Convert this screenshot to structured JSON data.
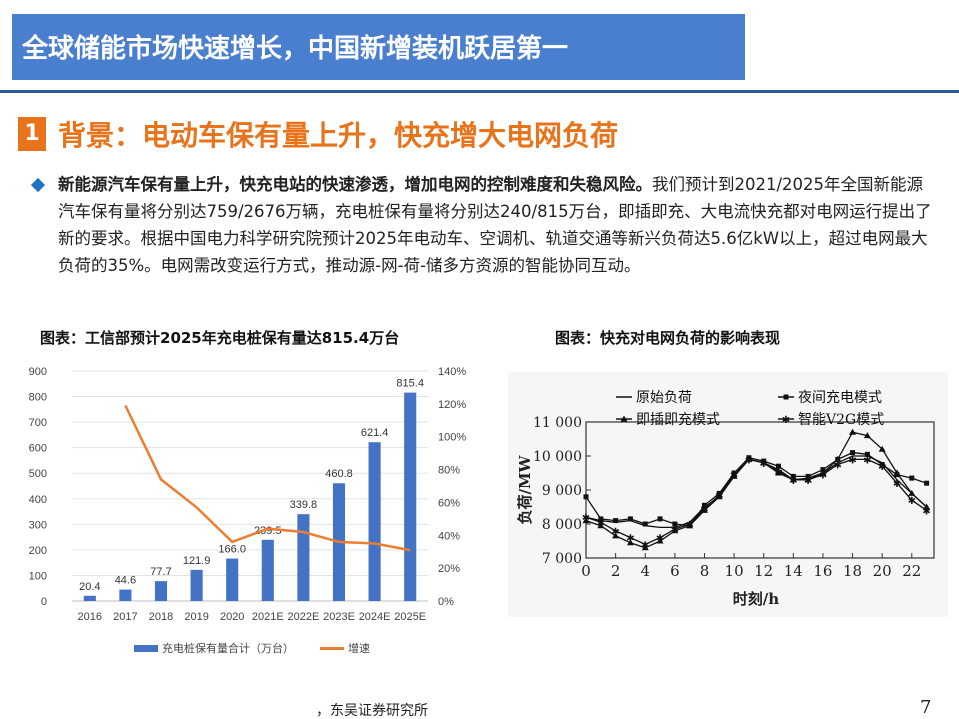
{
  "header": {
    "title": "全球储能市场快速增长，中国新增装机跃居第一"
  },
  "section": {
    "number": "1",
    "title": "背景：电动车保有量上升，快充增大电网负荷"
  },
  "paragraph": {
    "bold": "新能源汽车保有量上升，快充电站的快速渗透，增加电网的控制难度和失稳风险。",
    "rest": "我们预计到2021/2025年全国新能源汽车保有量将分别达759/2676万辆，充电桩保有量将分别达240/815万台，即插即充、大电流快充都对电网运行提出了新的要求。根据中国电力科学研究院预计2025年电动车、空调机、轨道交通等新兴负荷达5.6亿kW以上，超过电网最大负荷的35%。电网需改变运行方式，推动源-网-荷-储多方资源的智能协同互动。"
  },
  "chart_left_title": "图表：工信部预计2025年充电桩保有量达815.4万台",
  "chart_right_title": "图表：快充对电网负荷的影响表现",
  "footer": {
    "source": "，东吴证券研究所",
    "page": "7"
  },
  "colors": {
    "bar": "#4472c4",
    "growth_line": "#ed7d31",
    "title_bg": "#4a7fd0",
    "accent": "#e8731a"
  },
  "chart_data": [
    {
      "type": "bar",
      "categories": [
        "2016",
        "2017",
        "2018",
        "2019",
        "2020",
        "2021E",
        "2022E",
        "2023E",
        "2024E",
        "2025E"
      ],
      "series": [
        {
          "name": "充电桩保有量合计（万台）",
          "type": "bar",
          "axis": "left",
          "values": [
            20.4,
            44.6,
            77.7,
            121.9,
            166.0,
            239.5,
            339.8,
            460.8,
            621.4,
            815.4
          ],
          "labels": [
            "20.4",
            "44.6",
            "77.7",
            "121.9",
            "166.0",
            "239.5",
            "339.8",
            "460.8",
            "621.4",
            "815.4"
          ]
        },
        {
          "name": "增速",
          "type": "line",
          "axis": "right",
          "values": [
            null,
            1.19,
            0.74,
            0.57,
            0.36,
            0.44,
            0.42,
            0.36,
            0.35,
            0.31
          ]
        }
      ],
      "left_axis": {
        "ylim": [
          0,
          900
        ],
        "ticks": [
          "0",
          "100",
          "200",
          "300",
          "400",
          "500",
          "600",
          "700",
          "800",
          "900"
        ]
      },
      "right_axis": {
        "ylim": [
          0,
          1.4
        ],
        "ticks": [
          "0%",
          "20%",
          "40%",
          "60%",
          "80%",
          "100%",
          "120%",
          "140%"
        ]
      },
      "grid": true,
      "legend_position": "bottom"
    },
    {
      "type": "line",
      "xlabel": "时刻/h",
      "ylabel": "负荷/MW",
      "x": [
        0,
        1,
        2,
        3,
        4,
        5,
        6,
        7,
        8,
        9,
        10,
        11,
        12,
        13,
        14,
        15,
        16,
        17,
        18,
        19,
        20,
        21,
        22,
        23
      ],
      "xticks": [
        "0",
        "2",
        "4",
        "6",
        "8",
        "10",
        "12",
        "14",
        "16",
        "18",
        "20",
        "22"
      ],
      "yticks": [
        "7 000",
        "8 000",
        "9 000",
        "10 000",
        "11 000"
      ],
      "xlim": [
        0,
        23.5
      ],
      "ylim": [
        7000,
        11000
      ],
      "series": [
        {
          "name": "原始负荷",
          "marker": "none",
          "values": [
            8200,
            8100,
            8050,
            8100,
            7950,
            7900,
            7900,
            8050,
            8500,
            8800,
            9400,
            9900,
            9800,
            9600,
            9300,
            9350,
            9500,
            9800,
            10000,
            10000,
            9800,
            9300,
            8900,
            8500
          ]
        },
        {
          "name": "夜间充电模式",
          "marker": "square",
          "values": [
            8800,
            8150,
            8100,
            8150,
            8000,
            8150,
            8000,
            7950,
            8550,
            8900,
            9500,
            9950,
            9850,
            9700,
            9400,
            9400,
            9600,
            9900,
            10100,
            10050,
            9750,
            9450,
            9350,
            9200
          ]
        },
        {
          "name": "即插即充模式",
          "marker": "triangle",
          "values": [
            8100,
            7950,
            7650,
            7450,
            7300,
            7500,
            7800,
            7950,
            8400,
            8800,
            9400,
            9900,
            9800,
            9500,
            9300,
            9300,
            9500,
            9900,
            10700,
            10600,
            10200,
            9500,
            8900,
            8500
          ]
        },
        {
          "name": "智能V2G模式",
          "marker": "star",
          "values": [
            8200,
            8050,
            7800,
            7600,
            7400,
            7600,
            7850,
            8000,
            8450,
            8850,
            9450,
            9900,
            9800,
            9550,
            9300,
            9300,
            9450,
            9750,
            9900,
            9900,
            9700,
            9200,
            8700,
            8400
          ]
        }
      ]
    }
  ]
}
